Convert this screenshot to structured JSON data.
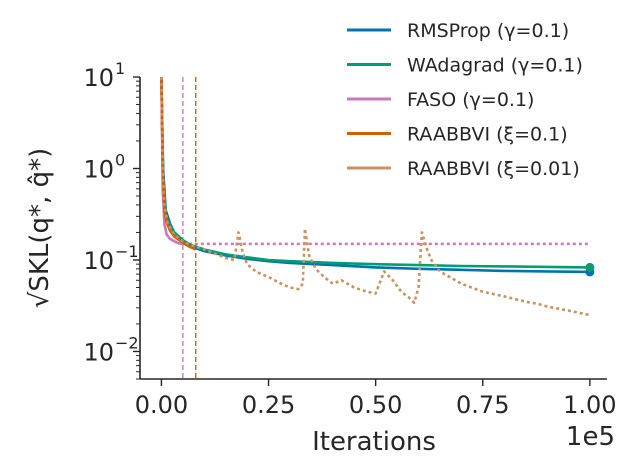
{
  "chart_data": {
    "type": "line",
    "xlabel": "Iterations",
    "ylabel": "√SKL(q*, q̂*)",
    "x_scale_note": "1e5",
    "xlim": [
      -5000,
      104000
    ],
    "ylim": [
      0.005,
      10
    ],
    "yscale": "log",
    "x_ticks": [
      0,
      25000,
      50000,
      75000,
      100000
    ],
    "x_tick_labels": [
      "0.00",
      "0.25",
      "0.50",
      "0.75",
      "1.00"
    ],
    "y_ticks": [
      0.01,
      0.1,
      1,
      10
    ],
    "y_tick_labels": [
      {
        "base": "10",
        "exp": "−2"
      },
      {
        "base": "10",
        "exp": "−1"
      },
      {
        "base": "10",
        "exp": "0"
      },
      {
        "base": "10",
        "exp": "1"
      }
    ],
    "legend_position": "top-right",
    "series": [
      {
        "name": "RMSProp (γ=0.1)",
        "color": "#0173b2",
        "style": "solid",
        "end_marker": true,
        "x": [
          0,
          400,
          1000,
          2000,
          3000,
          5000,
          7000,
          10000,
          15000,
          20000,
          25000,
          30000,
          40000,
          50000,
          60000,
          70000,
          80000,
          90000,
          100000
        ],
        "y": [
          10,
          1.0,
          0.35,
          0.25,
          0.2,
          0.16,
          0.14,
          0.125,
          0.112,
          0.103,
          0.097,
          0.093,
          0.088,
          0.083,
          0.08,
          0.078,
          0.076,
          0.075,
          0.074
        ]
      },
      {
        "name": "WAdagrad (γ=0.1)",
        "color": "#029e73",
        "style": "solid",
        "end_marker": true,
        "x": [
          0,
          400,
          1000,
          2000,
          3000,
          5000,
          7000,
          10000,
          15000,
          20000,
          25000,
          30000,
          40000,
          50000,
          60000,
          70000,
          80000,
          90000,
          100000
        ],
        "y": [
          10,
          0.8,
          0.3,
          0.24,
          0.2,
          0.165,
          0.145,
          0.13,
          0.115,
          0.107,
          0.1,
          0.097,
          0.093,
          0.09,
          0.088,
          0.086,
          0.085,
          0.084,
          0.083
        ]
      },
      {
        "name": "FASO (γ=0.1)",
        "color": "#cc78bc",
        "style": "solid",
        "stop_x": 5000,
        "x": [
          0,
          300,
          700,
          1200,
          2000,
          3000,
          4000,
          5000
        ],
        "y": [
          10,
          0.6,
          0.25,
          0.19,
          0.17,
          0.16,
          0.152,
          0.15
        ]
      },
      {
        "name": "RAABBVI (ξ=0.1)",
        "color": "#d55e00",
        "style": "solid",
        "stop_x": 8000,
        "x": [
          0,
          300,
          700,
          1200,
          2000,
          3000,
          5000,
          6500,
          8000
        ],
        "y": [
          10,
          1.0,
          0.35,
          0.26,
          0.21,
          0.18,
          0.155,
          0.14,
          0.13
        ]
      },
      {
        "name": "RAABBVI (ξ=0.01)",
        "color": "#ca9161",
        "style": "solid",
        "x": [
          0,
          300,
          700,
          1500,
          3000,
          5000,
          7000,
          9000,
          11000,
          13000,
          15000,
          17000,
          18000,
          19000,
          20000,
          22000,
          25000,
          28000,
          30000,
          32000,
          33000,
          33500,
          34500,
          36000,
          38000,
          40000,
          42000,
          45000,
          48000,
          50000,
          52000,
          54000,
          56000,
          58000,
          59000,
          60000,
          60800,
          62000,
          63000,
          65000,
          70000,
          75000,
          80000,
          85000,
          88000,
          90000,
          95000,
          100000
        ],
        "y": [
          10,
          1.0,
          0.4,
          0.25,
          0.19,
          0.16,
          0.145,
          0.135,
          0.125,
          0.115,
          0.105,
          0.1,
          0.2,
          0.12,
          0.09,
          0.075,
          0.065,
          0.055,
          0.05,
          0.048,
          0.055,
          0.22,
          0.11,
          0.08,
          0.065,
          0.055,
          0.06,
          0.05,
          0.045,
          0.043,
          0.075,
          0.06,
          0.045,
          0.038,
          0.034,
          0.05,
          0.2,
          0.13,
          0.1,
          0.075,
          0.055,
          0.045,
          0.04,
          0.035,
          0.033,
          0.031,
          0.028,
          0.025
        ]
      }
    ],
    "overlay_lines": [
      {
        "kind": "vertical",
        "x": 5000,
        "color": "#cc78bc",
        "style": "dashed"
      },
      {
        "kind": "vertical",
        "x": 8000,
        "color": "#d55e00",
        "style": "dashed"
      },
      {
        "kind": "horizontal",
        "y": 0.15,
        "from_x": 5000,
        "to_x": 100000,
        "color": "#cc78bc",
        "style": "dotted"
      }
    ]
  }
}
